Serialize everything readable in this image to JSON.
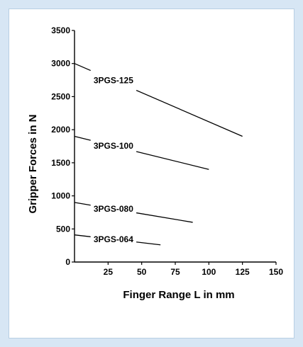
{
  "colors": {
    "page_bg": "#d7e6f4",
    "panel_bg": "#ffffff",
    "ink": "#000000"
  },
  "chart_data": {
    "type": "line",
    "title": "",
    "xlabel": "Finger Range L in mm",
    "ylabel": "Gripper Forces in N",
    "xlim": [
      0,
      150
    ],
    "ylim": [
      0,
      3500
    ],
    "xticks": [
      25,
      50,
      75,
      100,
      125,
      150
    ],
    "yticks": [
      0,
      500,
      1000,
      1500,
      2000,
      2500,
      3000,
      3500
    ],
    "grid": false,
    "legend": "none",
    "series": [
      {
        "name": "3PGS-125",
        "x": [
          0,
          125
        ],
        "y": [
          3000,
          1900
        ]
      },
      {
        "name": "3PGS-100",
        "x": [
          0,
          100
        ],
        "y": [
          1900,
          1400
        ]
      },
      {
        "name": "3PGS-080",
        "x": [
          0,
          88
        ],
        "y": [
          900,
          600
        ]
      },
      {
        "name": "3PGS-064",
        "x": [
          0,
          64
        ],
        "y": [
          410,
          260
        ]
      }
    ]
  }
}
